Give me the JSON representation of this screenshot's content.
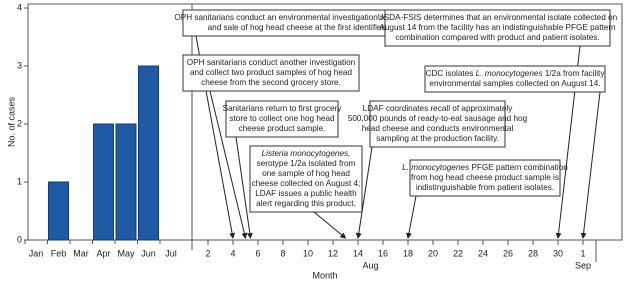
{
  "chart_data": {
    "type": "bar",
    "x_label": "Month",
    "y_label": "No. of cases",
    "categories": [
      "Jan",
      "Feb",
      "Mar",
      "Apr",
      "May",
      "Jun",
      "Jul"
    ],
    "values": [
      0,
      1,
      0,
      2,
      2,
      3,
      0
    ],
    "color": "#1f5aa6",
    "ylim": [
      0,
      4
    ],
    "yticks": [
      0,
      1,
      2,
      3,
      4
    ],
    "day_ticks": [
      2,
      4,
      6,
      8,
      10,
      12,
      14,
      16,
      18,
      20,
      22,
      24,
      26,
      28,
      30,
      {
        "value": 32,
        "label": "1"
      }
    ],
    "day_month_labels": [
      "Aug",
      "Sep"
    ],
    "annotations": [
      {
        "day": 4,
        "lines": [
          [
            "OPH sanitarians conduct an environmental investigation related to the preparation"
          ],
          [
            "and sale of hog head cheese at the first identified grocery store."
          ]
        ]
      },
      {
        "day": 5,
        "lines": [
          [
            "OPH sanitarians conduct another investigation"
          ],
          [
            "and collect two product samples of hog head"
          ],
          [
            "cheese from the second grocery store."
          ]
        ]
      },
      {
        "day": 5.4,
        "lines": [
          [
            "Sanitarians return to first grocery"
          ],
          [
            "store to collect one hog head"
          ],
          [
            "cheese product sample."
          ]
        ]
      },
      {
        "day": 13,
        "lines": [
          [
            {
              "text": "Listeria monocytogenes,",
              "italic": true
            }
          ],
          [
            "serotype 1/2a isolated from"
          ],
          [
            "one sample of hog head"
          ],
          [
            "cheese collected on August 4;"
          ],
          [
            "LDAF issues a public health"
          ],
          [
            "alert regarding this product."
          ]
        ]
      },
      {
        "day": 14,
        "lines": [
          [
            "LDAF coordinates recall of approximately"
          ],
          [
            "500,000 pounds of ready-to-eat sausage and hog"
          ],
          [
            "head cheese and conducts environmental"
          ],
          [
            "sampling at the production facility."
          ]
        ]
      },
      {
        "day": 18,
        "lines": [
          [
            {
              "text": "L. monocytogenes",
              "italic": true
            },
            " PFGE pattern combination"
          ],
          [
            "from hog head cheese product sample is"
          ],
          [
            "indistinguishable from patient isolates."
          ]
        ]
      },
      {
        "day": 30,
        "lines": [
          [
            "USDA-FSIS determines that an environmental isolate collected on"
          ],
          [
            "August 14 from the facility has an indistinguishable PFGE pattern"
          ],
          [
            "combination compared with product and patient isolates."
          ]
        ]
      },
      {
        "day": 32,
        "lines": [
          [
            "CDC isolates ",
            {
              "text": "L. monocytogenes",
              "italic": true
            },
            " 1/2a from facility"
          ],
          [
            "environmental samples collected on August 14."
          ]
        ]
      }
    ]
  }
}
